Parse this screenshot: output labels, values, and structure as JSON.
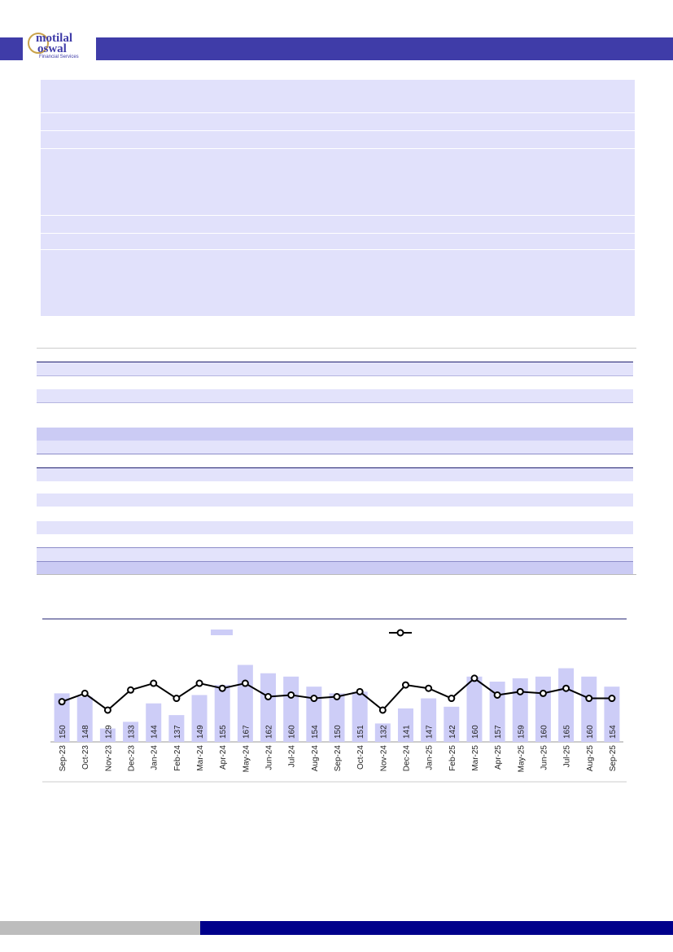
{
  "logo": {
    "line1": "motilal",
    "line2": "oswal",
    "tagline": "Financial Services"
  },
  "chart_data": {
    "type": "bar-line",
    "categories": [
      "Sep-23",
      "Oct-23",
      "Nov-23",
      "Dec-23",
      "Jan-24",
      "Feb-24",
      "Mar-24",
      "Apr-24",
      "May-24",
      "Jun-24",
      "Jul-24",
      "Aug-24",
      "Sep-24",
      "Oct-24",
      "Nov-24",
      "Dec-24",
      "Jan-25",
      "Feb-25",
      "Mar-25",
      "Apr-25",
      "May-25",
      "Jun-25",
      "Jul-25",
      "Aug-25",
      "Sep-25"
    ],
    "series": [
      {
        "type": "bar",
        "color": "#cdcdf7",
        "values": [
          150,
          148,
          129,
          133,
          144,
          137,
          149,
          155,
          167,
          162,
          160,
          154,
          150,
          151,
          132,
          141,
          147,
          142,
          160,
          157,
          159,
          160,
          165,
          160,
          154
        ]
      },
      {
        "type": "line",
        "color": "#000000",
        "values": [
          145,
          150,
          140,
          152,
          156,
          147,
          156,
          153,
          156,
          148,
          149,
          147,
          148,
          151,
          140,
          155,
          153,
          147,
          159,
          149,
          151,
          150,
          153,
          147,
          147
        ]
      }
    ],
    "ylim": [
      121,
      175
    ]
  }
}
